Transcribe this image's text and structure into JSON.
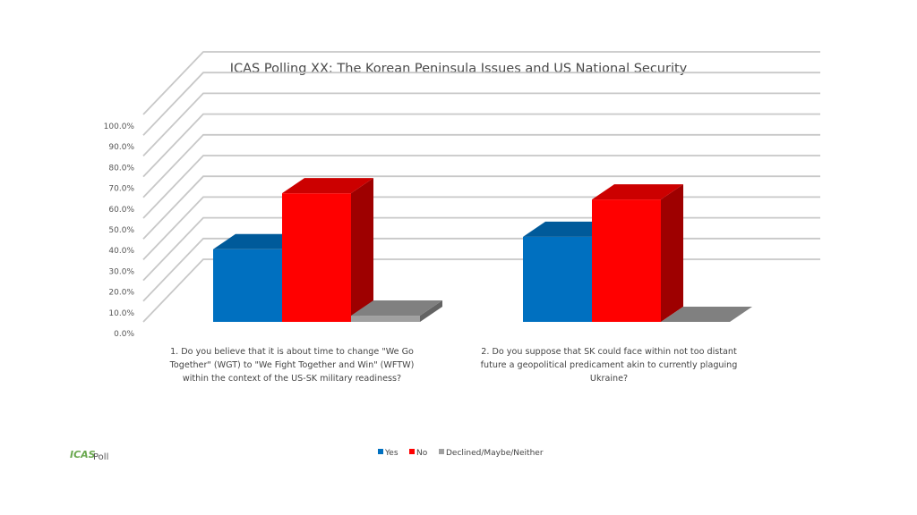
{
  "chart_data": {
    "type": "bar",
    "title": "ICAS Polling XX: The Korean Peninsula Issues and US National Security",
    "categories": [
      [
        "1.     Do you believe that it is about time to change \"We Go",
        "Together\" (WGT) to \"We Fight Together and Win\" (WFTW)",
        "within the context of the US-SK military readiness?"
      ],
      [
        "2.     Do you suppose that SK could face within not too distant",
        "future a geopolitical predicament akin to currently plaguing",
        "Ukraine?"
      ]
    ],
    "series": [
      {
        "name": "Yes",
        "values": [
          35,
          41
        ],
        "color": "#0070c0"
      },
      {
        "name": "No",
        "values": [
          62,
          59
        ],
        "color": "#ff0000"
      },
      {
        "name": "Declined/Maybe/Neither",
        "values": [
          3,
          0
        ],
        "color": "#a0a0a0"
      }
    ],
    "y_ticks": [
      "0.0%",
      "10.0%",
      "20.0%",
      "30.0%",
      "40.0%",
      "50.0%",
      "60.0%",
      "70.0%",
      "80.0%",
      "90.0%",
      "100.0%"
    ],
    "ylim": [
      0,
      100
    ],
    "legend_position": "bottom",
    "grid": true,
    "chart_style": "3d-clustered-column"
  },
  "logo": {
    "brand": "ICAS",
    "suffix": "Poll"
  }
}
